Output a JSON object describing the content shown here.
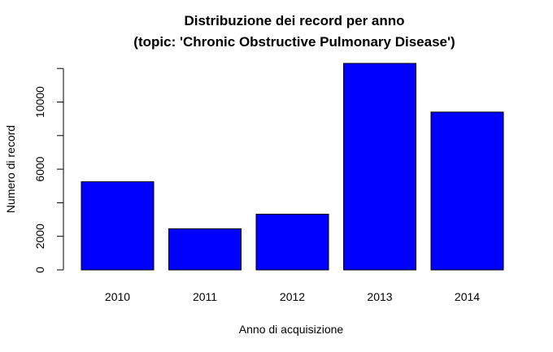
{
  "chart_data": {
    "type": "bar",
    "title": "Distribuzione dei record per anno",
    "subtitle": "(topic: 'Chronic Obstructive Pulmonary Disease')",
    "xlabel": "Anno di acquisizione",
    "ylabel": "Numero di record",
    "categories": [
      "2010",
      "2011",
      "2012",
      "2013",
      "2014"
    ],
    "values": [
      5250,
      2450,
      3320,
      12300,
      9400
    ],
    "ylim": [
      0,
      12300
    ],
    "yticks": [
      0,
      2000,
      6000,
      10000
    ],
    "bar_color": "#0000ff",
    "bar_border": "#000000",
    "grid": false,
    "legend": "none"
  }
}
